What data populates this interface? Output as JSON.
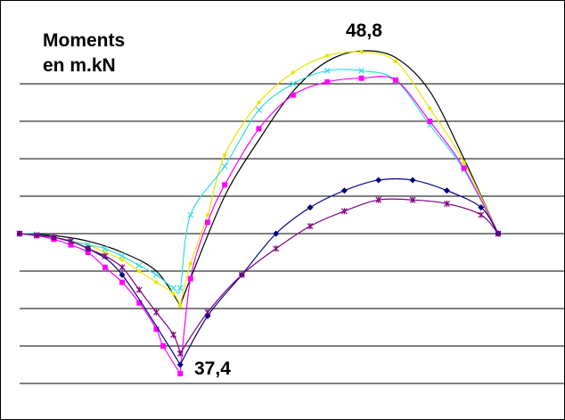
{
  "chart_data": {
    "type": "line",
    "title_line1": "Moments",
    "title_line2": "en m.kN",
    "annotations": {
      "max": "48,8",
      "min": "37,4"
    },
    "xlim": [
      0,
      14
    ],
    "ylim": [
      -42,
      52
    ],
    "gridlines_y": [
      40,
      30,
      20,
      10,
      0,
      -10,
      -20,
      -30,
      -40
    ],
    "legend": "none",
    "series": [
      {
        "color": "#000000",
        "marker": "none",
        "points": [
          [
            0,
            0
          ],
          [
            1,
            -0.5
          ],
          [
            2,
            -2
          ],
          [
            3,
            -5
          ],
          [
            4,
            -10
          ],
          [
            4.7,
            -19.3
          ],
          [
            5,
            -12
          ],
          [
            6,
            10
          ],
          [
            7,
            25
          ],
          [
            8,
            38
          ],
          [
            9,
            46
          ],
          [
            10,
            48.8
          ],
          [
            11,
            47
          ],
          [
            12,
            38
          ],
          [
            13,
            20
          ],
          [
            14,
            0
          ]
        ]
      },
      {
        "color": "#E6E600",
        "marker": "dot",
        "points": [
          [
            0,
            0
          ],
          [
            0.5,
            -0.3
          ],
          [
            1,
            -1
          ],
          [
            1.5,
            -2
          ],
          [
            2,
            -3
          ],
          [
            2.5,
            -5
          ],
          [
            3,
            -7
          ],
          [
            3.5,
            -10
          ],
          [
            4,
            -13
          ],
          [
            4.5,
            -16
          ],
          [
            4.7,
            -19.3
          ],
          [
            5,
            -8
          ],
          [
            5.5,
            5
          ],
          [
            6,
            21
          ],
          [
            7,
            35
          ],
          [
            8,
            43
          ],
          [
            9,
            47.5
          ],
          [
            10,
            48.5
          ],
          [
            11,
            46
          ],
          [
            12,
            33.5
          ],
          [
            13,
            19
          ],
          [
            14,
            0
          ]
        ]
      },
      {
        "color": "#33DDE0",
        "marker": "x",
        "points": [
          [
            0,
            0
          ],
          [
            0.5,
            -0.2
          ],
          [
            1,
            -1
          ],
          [
            1.5,
            -2
          ],
          [
            2,
            -3
          ],
          [
            2.5,
            -4
          ],
          [
            3,
            -6
          ],
          [
            3.5,
            -8.5
          ],
          [
            4,
            -11
          ],
          [
            4.5,
            -14.5
          ],
          [
            4.7,
            -14.5
          ],
          [
            5,
            5
          ],
          [
            6,
            18
          ],
          [
            7,
            33
          ],
          [
            8,
            40
          ],
          [
            9,
            43.5
          ],
          [
            10,
            43.5
          ],
          [
            11,
            41
          ],
          [
            12,
            29
          ],
          [
            13,
            17
          ],
          [
            14,
            0
          ]
        ]
      },
      {
        "color": "#FF00FF",
        "marker": "square",
        "points": [
          [
            0,
            0
          ],
          [
            0.5,
            -0.5
          ],
          [
            1,
            -1.5
          ],
          [
            1.5,
            -3
          ],
          [
            2,
            -5
          ],
          [
            2.5,
            -9
          ],
          [
            3,
            -13
          ],
          [
            3.5,
            -18.5
          ],
          [
            4,
            -25.5
          ],
          [
            4.2,
            -30
          ],
          [
            4.7,
            -37.4
          ],
          [
            5,
            -12
          ],
          [
            5.5,
            3
          ],
          [
            6,
            13
          ],
          [
            7,
            28
          ],
          [
            8,
            37
          ],
          [
            9,
            40.5
          ],
          [
            10,
            41.5
          ],
          [
            11,
            41
          ],
          [
            12,
            30
          ],
          [
            13,
            17.5
          ],
          [
            14,
            0
          ]
        ]
      },
      {
        "color": "#000080",
        "marker": "diamond",
        "points": [
          [
            0,
            0
          ],
          [
            1,
            -1
          ],
          [
            2,
            -4
          ],
          [
            3,
            -11
          ],
          [
            4.7,
            -35
          ],
          [
            5.5,
            -22
          ],
          [
            6.5,
            -11
          ],
          [
            7.5,
            0
          ],
          [
            8.5,
            7
          ],
          [
            9.5,
            11.5
          ],
          [
            10.5,
            14.3
          ],
          [
            11.5,
            14.3
          ],
          [
            12.5,
            11.5
          ],
          [
            13.5,
            7
          ],
          [
            14,
            0
          ]
        ]
      },
      {
        "color": "#800080",
        "marker": "star",
        "points": [
          [
            0,
            0
          ],
          [
            0.5,
            -0.5
          ],
          [
            1,
            -1
          ],
          [
            1.5,
            -2
          ],
          [
            2,
            -4
          ],
          [
            2.5,
            -6
          ],
          [
            3,
            -9
          ],
          [
            3.5,
            -15
          ],
          [
            4,
            -21
          ],
          [
            4.5,
            -27
          ],
          [
            4.7,
            -32
          ],
          [
            5.5,
            -21
          ],
          [
            6.5,
            -11
          ],
          [
            7.5,
            -4
          ],
          [
            8.5,
            2
          ],
          [
            9.5,
            6
          ],
          [
            10.5,
            9
          ],
          [
            11.5,
            9
          ],
          [
            12.5,
            8
          ],
          [
            13.5,
            5
          ],
          [
            14,
            0
          ]
        ]
      }
    ]
  }
}
